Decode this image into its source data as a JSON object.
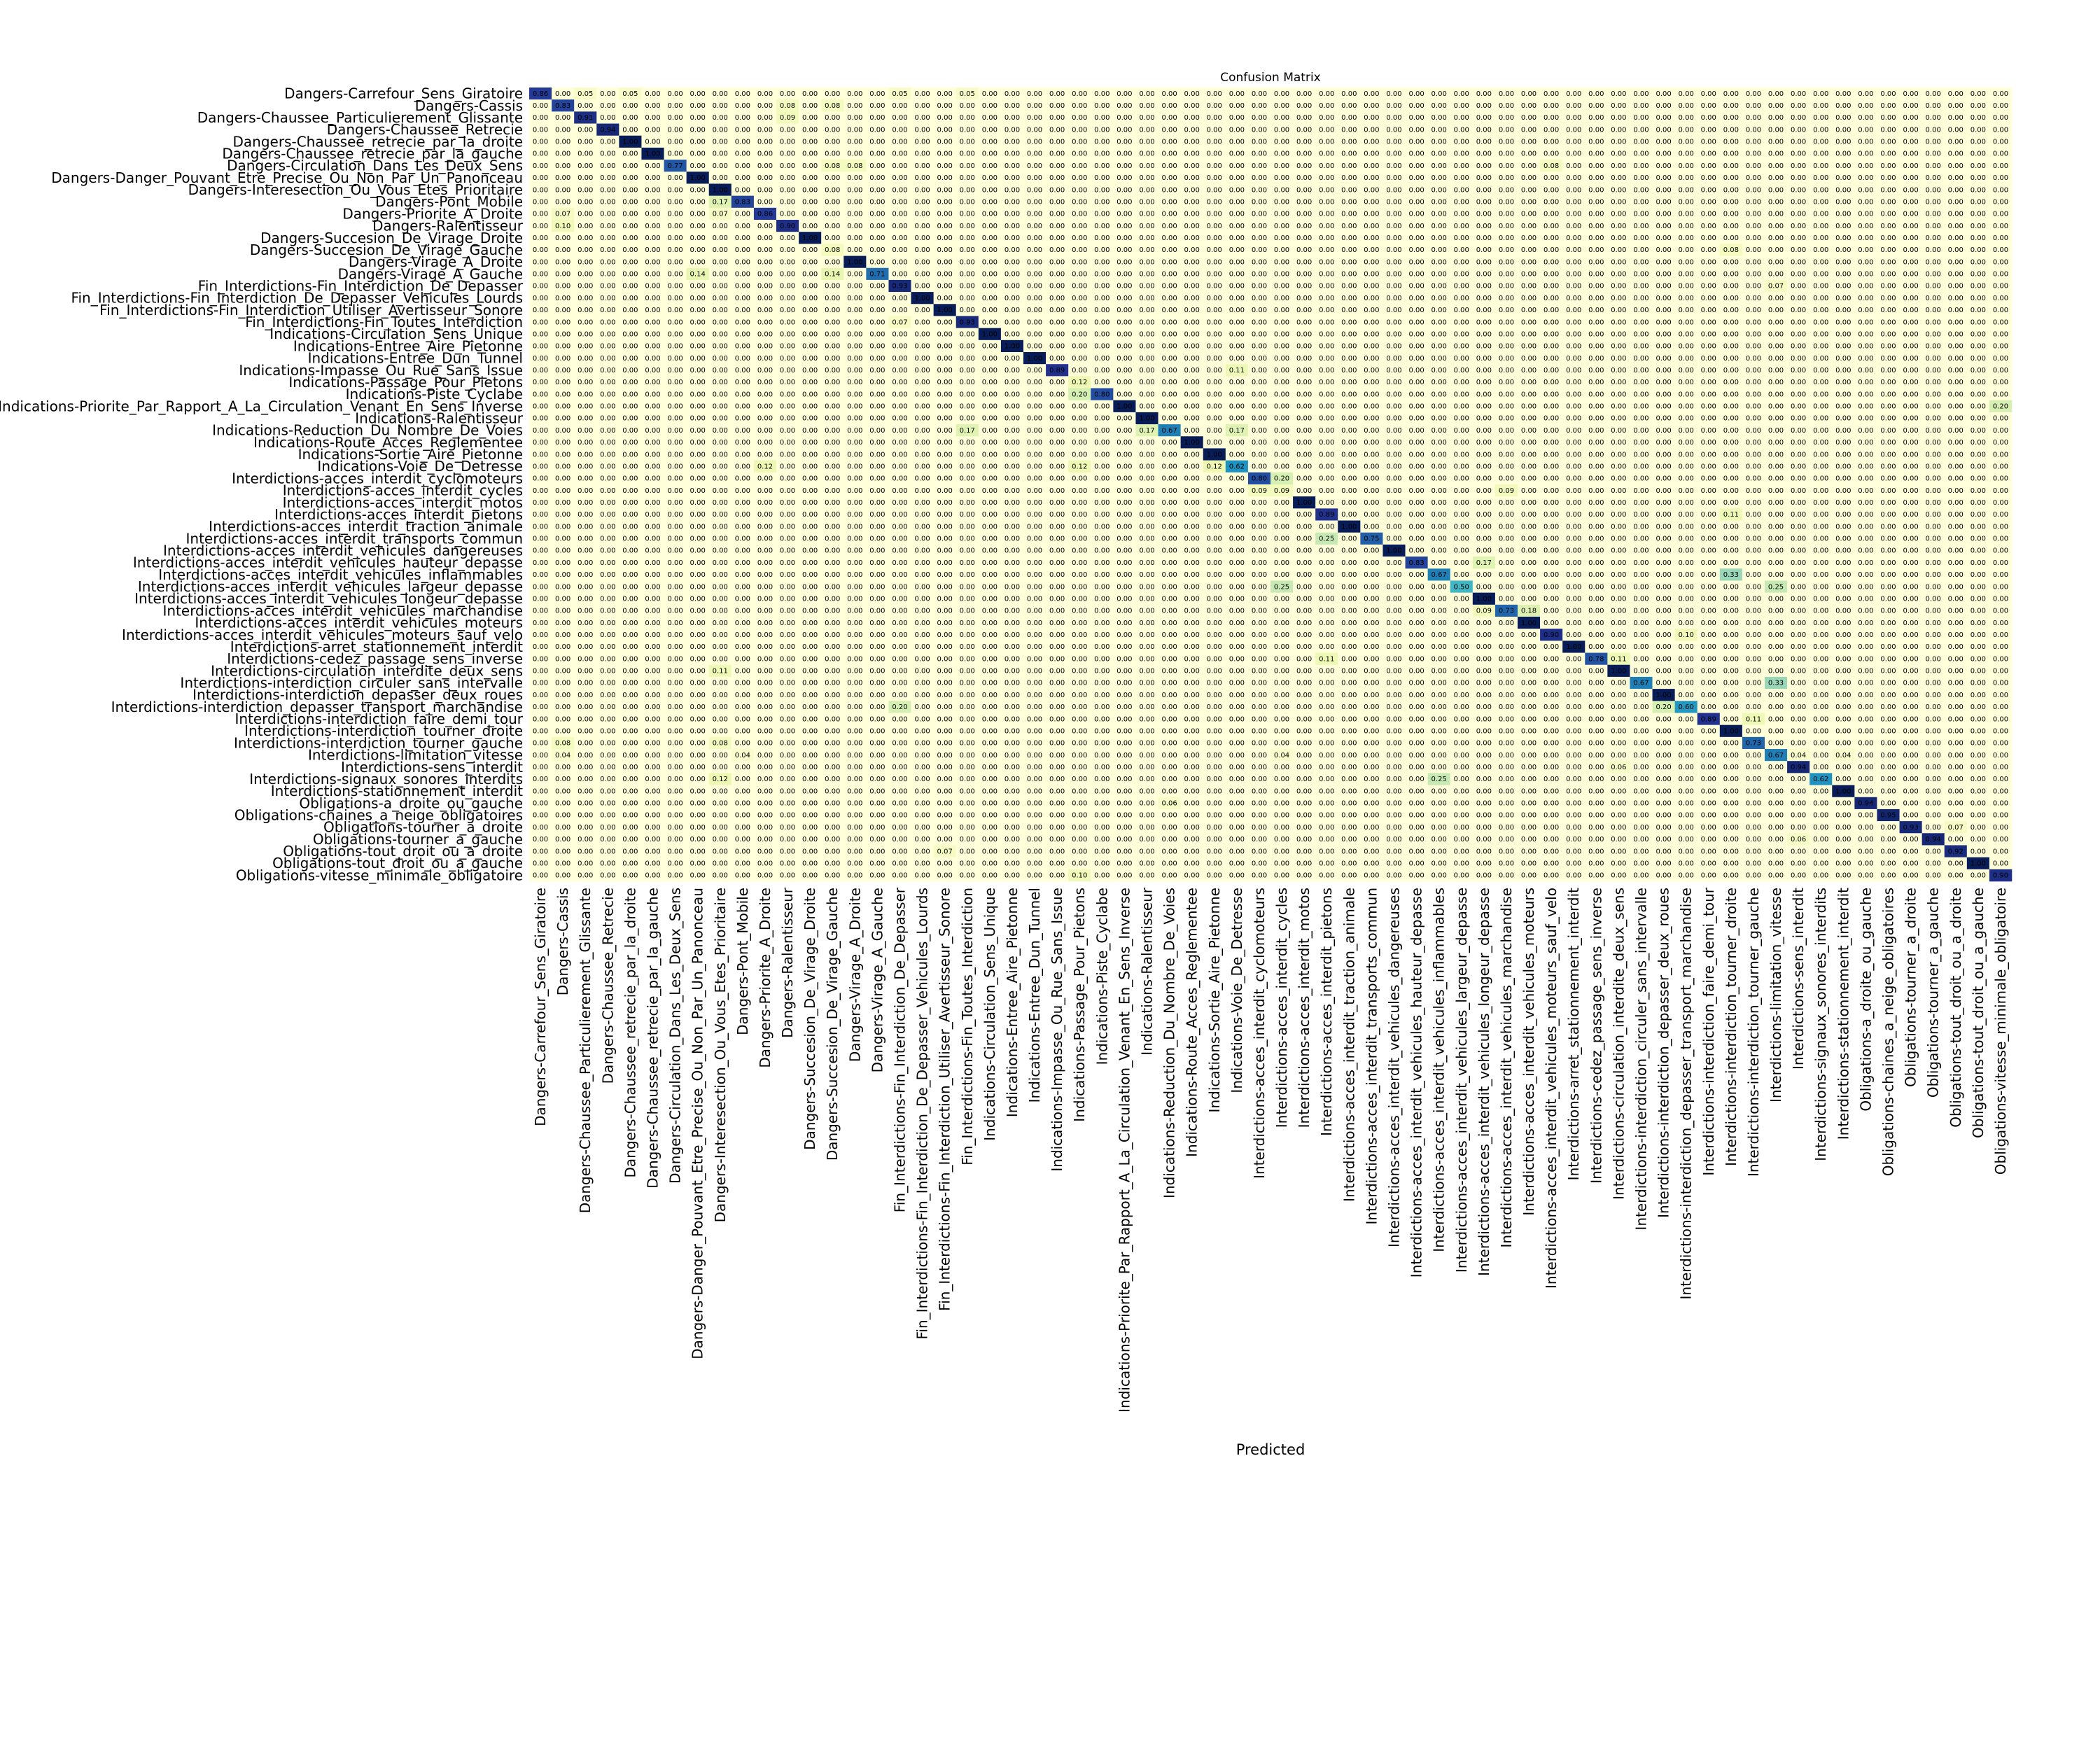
{
  "chart_data": {
    "type": "heatmap",
    "title": "Confusion Matrix",
    "xlabel": "Predicted",
    "ylabel": "",
    "value_range": [
      0,
      1
    ],
    "value_format": "0.00",
    "colormap": "YlGnBu",
    "colorbar": false,
    "labels": [
      "Dangers-Carrefour_Sens_Giratoire",
      "Dangers-Cassis",
      "Dangers-Chaussee_Particulierement_Glissante",
      "Dangers-Chaussee_Retrecie",
      "Dangers-Chaussee_retrecie_par_la_droite",
      "Dangers-Chaussee_retrecie_par_la_gauche",
      "Dangers-Circulation_Dans_Les_Deux_Sens",
      "Dangers-Danger_Pouvant_Etre_Precise_Ou_Non_Par_Un_Panonceau",
      "Dangers-Interesection_Ou_Vous_Etes_Prioritaire",
      "Dangers-Pont_Mobile",
      "Dangers-Priorite_A_Droite",
      "Dangers-Ralentisseur",
      "Dangers-Succesion_De_Virage_Droite",
      "Dangers-Succesion_De_Virage_Gauche",
      "Dangers-Virage_A_Droite",
      "Dangers-Virage_A_Gauche",
      "Fin_Interdictions-Fin_Interdiction_De_Depasser",
      "Fin_Interdictions-Fin_Interdiction_De_Depasser_Vehicules_Lourds",
      "Fin_Interdictions-Fin_Interdiction_Utiliser_Avertisseur_Sonore",
      "Fin_Interdictions-Fin_Toutes_Interdiction",
      "Indications-Circulation_Sens_Unique",
      "Indications-Entree_Aire_Pietonne",
      "Indications-Entree_Dun_Tunnel",
      "Indications-Impasse_Ou_Rue_Sans_Issue",
      "Indications-Passage_Pour_Pietons",
      "Indications-Piste_Cyclabe",
      "Indications-Priorite_Par_Rapport_A_La_Circulation_Venant_En_Sens_Inverse",
      "Indications-Ralentisseur",
      "Indications-Reduction_Du_Nombre_De_Voies",
      "Indications-Route_Acces_Reglementee",
      "Indications-Sortie_Aire_Pietonne",
      "Indications-Voie_De_Detresse",
      "Interdictions-acces_interdit_cyclomoteurs",
      "Interdictions-acces_interdit_cycles",
      "Interdictions-acces_interdit_motos",
      "Interdictions-acces_interdit_pietons",
      "Interdictions-acces_interdit_traction_animale",
      "Interdictions-acces_interdit_transports_commun",
      "Interdictions-acces_interdit_vehicules_dangereuses",
      "Interdictions-acces_interdit_vehicules_hauteur_depasse",
      "Interdictions-acces_interdit_vehicules_inflammables",
      "Interdictions-acces_interdit_vehicules_largeur_depasse",
      "Interdictions-acces_interdit_vehicules_longeur_depasse",
      "Interdictions-acces_interdit_vehicules_marchandise",
      "Interdictions-acces_interdit_vehicules_moteurs",
      "Interdictions-acces_interdit_vehicules_moteurs_sauf_velo",
      "Interdictions-arret_stationnement_interdit",
      "Interdictions-cedez_passage_sens_inverse",
      "Interdictions-circulation_interdite_deux_sens",
      "Interdictions-interdiction_circuler_sans_intervalle",
      "Interdictions-interdiction_depasser_deux_roues",
      "Interdictions-interdiction_depasser_transport_marchandise",
      "Interdictions-interdiction_faire_demi_tour",
      "Interdictions-interdiction_tourner_droite",
      "Interdictions-interdiction_tourner_gauche",
      "Interdictions-limitation_vitesse",
      "Interdictions-sens_interdit",
      "Interdictions-signaux_sonores_interdits",
      "Interdictions-stationnement_interdit",
      "Obligations-a_droite_ou_gauche",
      "Obligations-chaines_a_neige_obligatoires",
      "Obligations-tourner_a_droite",
      "Obligations-tourner_a_gauche",
      "Obligations-tout_droit_ou_a_droite",
      "Obligations-tout_droit_ou_a_gauche",
      "Obligations-vitesse_minimale_obligatoire"
    ],
    "diagonal": [
      0.86,
      0.83,
      0.91,
      0.94,
      1.0,
      1.0,
      0.77,
      1.0,
      1.0,
      0.83,
      0.86,
      0.9,
      1.0,
      0.92,
      1.0,
      0.71,
      0.93,
      1.0,
      1.0,
      0.93,
      1.0,
      1.0,
      1.0,
      0.89,
      1.0,
      0.8,
      1.0,
      1.0,
      0.67,
      1.0,
      1.0,
      0.62,
      0.8,
      0.73,
      1.0,
      0.89,
      1.0,
      0.75,
      1.0,
      0.83,
      0.67,
      0.5,
      1.0,
      0.73,
      1.0,
      0.9,
      1.0,
      0.78,
      1.0,
      0.67,
      1.0,
      0.6,
      0.89,
      1.0,
      0.73,
      0.67,
      0.94,
      0.62,
      1.0,
      0.94,
      0.95,
      0.93,
      0.94,
      0.92,
      1.0,
      0.9
    ],
    "off_diagonal": [
      {
        "row": 0,
        "col": 2,
        "value": 0.05
      },
      {
        "row": 0,
        "col": 4,
        "value": 0.05
      },
      {
        "row": 0,
        "col": 16,
        "value": 0.05
      },
      {
        "row": 0,
        "col": 19,
        "value": 0.05
      },
      {
        "row": 1,
        "col": 11,
        "value": 0.08
      },
      {
        "row": 1,
        "col": 13,
        "value": 0.08
      },
      {
        "row": 2,
        "col": 11,
        "value": 0.09
      },
      {
        "row": 6,
        "col": 13,
        "value": 0.08
      },
      {
        "row": 6,
        "col": 14,
        "value": 0.08
      },
      {
        "row": 6,
        "col": 45,
        "value": 0.08
      },
      {
        "row": 9,
        "col": 8,
        "value": 0.17
      },
      {
        "row": 10,
        "col": 1,
        "value": 0.07
      },
      {
        "row": 10,
        "col": 8,
        "value": 0.07
      },
      {
        "row": 11,
        "col": 1,
        "value": 0.1
      },
      {
        "row": 13,
        "col": 13,
        "value": 0.08
      },
      {
        "row": 13,
        "col": 53,
        "value": 0.08
      },
      {
        "row": 15,
        "col": 7,
        "value": 0.14
      },
      {
        "row": 15,
        "col": 13,
        "value": 0.14
      },
      {
        "row": 16,
        "col": 55,
        "value": 0.07
      },
      {
        "row": 19,
        "col": 16,
        "value": 0.07
      },
      {
        "row": 23,
        "col": 31,
        "value": 0.11
      },
      {
        "row": 24,
        "col": 24,
        "value": 0.12
      },
      {
        "row": 25,
        "col": 24,
        "value": 0.2
      },
      {
        "row": 26,
        "col": 65,
        "value": 0.2
      },
      {
        "row": 28,
        "col": 19,
        "value": 0.17
      },
      {
        "row": 28,
        "col": 27,
        "value": 0.17
      },
      {
        "row": 28,
        "col": 31,
        "value": 0.17
      },
      {
        "row": 31,
        "col": 10,
        "value": 0.12
      },
      {
        "row": 31,
        "col": 24,
        "value": 0.12
      },
      {
        "row": 31,
        "col": 30,
        "value": 0.12
      },
      {
        "row": 32,
        "col": 33,
        "value": 0.2
      },
      {
        "row": 33,
        "col": 32,
        "value": 0.09
      },
      {
        "row": 33,
        "col": 33,
        "value": 0.09
      },
      {
        "row": 33,
        "col": 43,
        "value": 0.09
      },
      {
        "row": 35,
        "col": 53,
        "value": 0.11
      },
      {
        "row": 37,
        "col": 35,
        "value": 0.25
      },
      {
        "row": 39,
        "col": 42,
        "value": 0.17
      },
      {
        "row": 40,
        "col": 53,
        "value": 0.33
      },
      {
        "row": 41,
        "col": 33,
        "value": 0.25
      },
      {
        "row": 41,
        "col": 55,
        "value": 0.25
      },
      {
        "row": 43,
        "col": 42,
        "value": 0.09
      },
      {
        "row": 43,
        "col": 44,
        "value": 0.18
      },
      {
        "row": 45,
        "col": 51,
        "value": 0.1
      },
      {
        "row": 47,
        "col": 48,
        "value": 0.11
      },
      {
        "row": 47,
        "col": 35,
        "value": 0.11
      },
      {
        "row": 48,
        "col": 8,
        "value": 0.11
      },
      {
        "row": 49,
        "col": 55,
        "value": 0.33
      },
      {
        "row": 51,
        "col": 16,
        "value": 0.2
      },
      {
        "row": 51,
        "col": 50,
        "value": 0.2
      },
      {
        "row": 52,
        "col": 54,
        "value": 0.11
      },
      {
        "row": 54,
        "col": 1,
        "value": 0.08
      },
      {
        "row": 54,
        "col": 8,
        "value": 0.08
      },
      {
        "row": 55,
        "col": 1,
        "value": 0.04
      },
      {
        "row": 55,
        "col": 9,
        "value": 0.04
      },
      {
        "row": 55,
        "col": 33,
        "value": 0.04
      },
      {
        "row": 55,
        "col": 56,
        "value": 0.04
      },
      {
        "row": 55,
        "col": 58,
        "value": 0.04
      },
      {
        "row": 56,
        "col": 48,
        "value": 0.06
      },
      {
        "row": 57,
        "col": 8,
        "value": 0.12
      },
      {
        "row": 57,
        "col": 40,
        "value": 0.25
      },
      {
        "row": 59,
        "col": 28,
        "value": 0.06
      },
      {
        "row": 61,
        "col": 63,
        "value": 0.07
      },
      {
        "row": 62,
        "col": 56,
        "value": 0.06
      },
      {
        "row": 63,
        "col": 18,
        "value": 0.07
      },
      {
        "row": 65,
        "col": 24,
        "value": 0.1
      }
    ]
  }
}
